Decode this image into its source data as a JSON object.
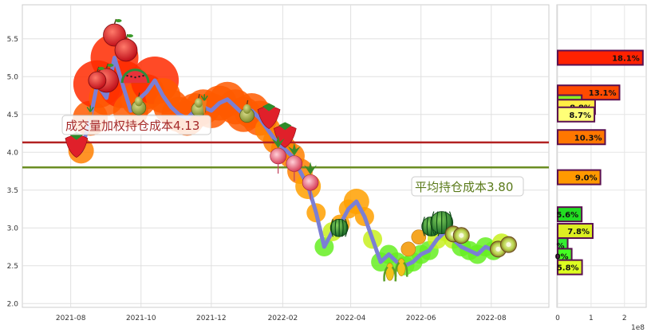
{
  "chart_data": [
    {
      "type": "line",
      "xlabel": "",
      "ylabel": "",
      "x_ticks": [
        "2021-08",
        "2021-10",
        "2021-12",
        "2022-02",
        "2022-04",
        "2022-06",
        "2022-08"
      ],
      "y_ticks": [
        "2.0",
        "2.5",
        "3.0",
        "3.5",
        "4.0",
        "4.5",
        "5.0",
        "5.5"
      ],
      "ylim": [
        1.95,
        5.95
      ],
      "grid": true,
      "series": [
        {
          "color": "#7b7fd4",
          "x": [
            "2021-08-10",
            "2021-08-18",
            "2021-08-24",
            "2021-09-01",
            "2021-09-08",
            "2021-09-15",
            "2021-09-22",
            "2021-09-29",
            "2021-10-06",
            "2021-10-13",
            "2021-10-20",
            "2021-10-27",
            "2021-11-03",
            "2021-11-10",
            "2021-11-17",
            "2021-11-24",
            "2021-12-01",
            "2021-12-08",
            "2021-12-15",
            "2021-12-22",
            "2021-12-29",
            "2022-01-05",
            "2022-01-12",
            "2022-01-19",
            "2022-01-26",
            "2022-02-02",
            "2022-02-09",
            "2022-02-16",
            "2022-02-23",
            "2022-03-02",
            "2022-03-09",
            "2022-03-16",
            "2022-03-23",
            "2022-03-30",
            "2022-04-06",
            "2022-04-13",
            "2022-04-20",
            "2022-04-27",
            "2022-05-04",
            "2022-05-11",
            "2022-05-18",
            "2022-05-25",
            "2022-06-01",
            "2022-06-08",
            "2022-06-15",
            "2022-06-22",
            "2022-06-29",
            "2022-07-06",
            "2022-07-13",
            "2022-07-20",
            "2022-07-27",
            "2022-08-03",
            "2022-08-10"
          ],
          "y": [
            4.02,
            4.45,
            4.9,
            4.72,
            5.25,
            4.9,
            4.55,
            4.7,
            4.8,
            4.95,
            4.75,
            4.6,
            4.5,
            4.45,
            4.55,
            4.6,
            4.55,
            4.65,
            4.7,
            4.6,
            4.5,
            4.55,
            4.45,
            4.3,
            4.15,
            4.05,
            3.95,
            3.75,
            3.55,
            3.2,
            2.75,
            2.95,
            3.05,
            3.25,
            3.35,
            3.15,
            2.85,
            2.55,
            2.65,
            2.55,
            2.5,
            2.55,
            2.65,
            2.7,
            2.85,
            2.95,
            2.85,
            2.75,
            2.7,
            2.65,
            2.75,
            2.7,
            2.8
          ]
        }
      ],
      "reference_lines": [
        {
          "label": "成交量加权持仓成本4.13",
          "value": 4.13,
          "color": "#b22222"
        },
        {
          "label": "平均持仓成本3.80",
          "value": 3.8,
          "color": "#6b8e23"
        }
      ]
    },
    {
      "type": "bar",
      "orientation": "horizontal",
      "x_ticks": [
        "0",
        "1",
        "2"
      ],
      "x_multiplier": "1e8",
      "xlim": [
        0,
        2.65
      ],
      "bars": [
        {
          "label": "18.1%",
          "price": 5.25,
          "value": 2.55,
          "color": "#ff2200"
        },
        {
          "label": "13.1%",
          "price": 4.79,
          "value": 1.85,
          "color": "#ff4a00"
        },
        {
          "label": "5.6%",
          "price": 4.66,
          "value": 0.72,
          "color": "#88ee22"
        },
        {
          "label": "8.8%",
          "price": 4.6,
          "value": 1.12,
          "color": "#ffee44"
        },
        {
          "label": "8.7%",
          "price": 4.5,
          "value": 1.1,
          "color": "#ffff77"
        },
        {
          "label": "10.3%",
          "price": 4.2,
          "value": 1.42,
          "color": "#ff7700"
        },
        {
          "label": "9.0%",
          "price": 3.67,
          "value": 1.28,
          "color": "#ff9900"
        },
        {
          "label": "5.6%",
          "price": 3.18,
          "value": 0.72,
          "color": "#22dd22"
        },
        {
          "label": "7.8%",
          "price": 2.96,
          "value": 1.05,
          "color": "#ddee22"
        },
        {
          "label": "%",
          "price": 2.77,
          "value": 0.3,
          "color": "#33ee33"
        },
        {
          "label": "0%",
          "price": 2.63,
          "value": 0.42,
          "color": "#44ff22"
        },
        {
          "label": "5.8%",
          "price": 2.48,
          "value": 0.73,
          "color": "#ddff22"
        }
      ]
    }
  ]
}
